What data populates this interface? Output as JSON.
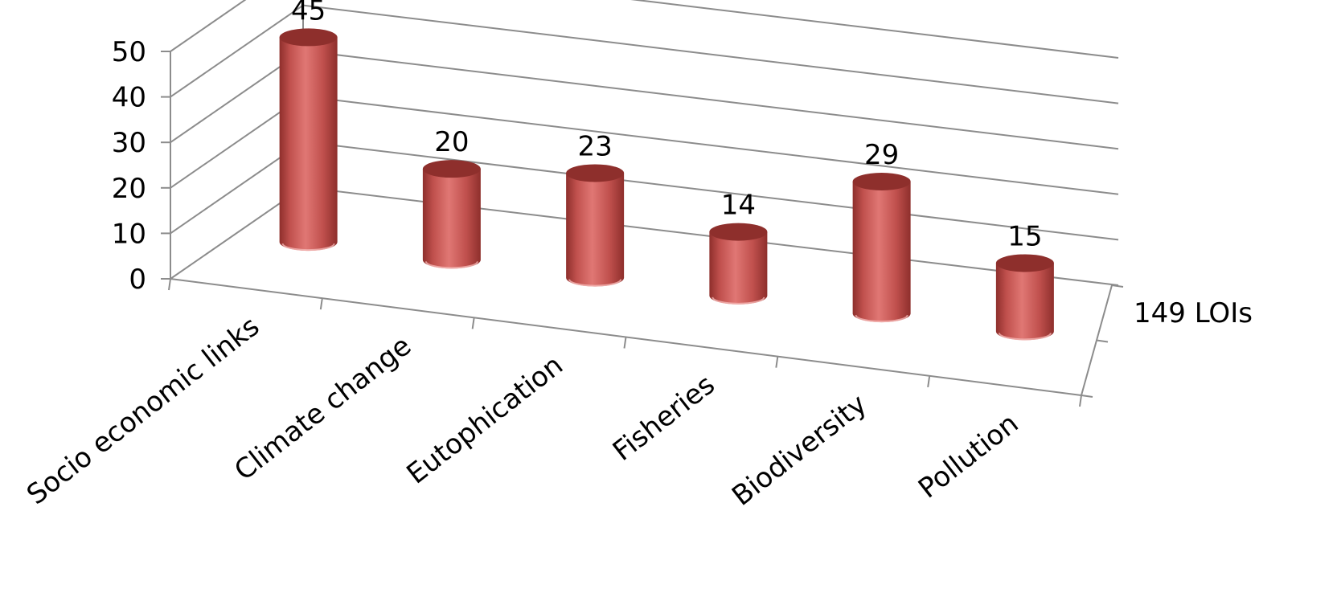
{
  "chart_data": {
    "type": "bar",
    "style": "3d-cylinder",
    "title": "",
    "xlabel": "",
    "ylabel": "",
    "ylim": [
      0,
      50
    ],
    "yticks": [
      "0",
      "10",
      "20",
      "30",
      "40",
      "50"
    ],
    "grid": true,
    "categories": [
      "Socio economic links",
      "Climate change",
      "Eutophication",
      "Fisheries",
      "Biodiversity",
      "Pollution"
    ],
    "series": [
      {
        "name": "149 LOIs",
        "values": [
          45,
          20,
          23,
          14,
          29,
          15
        ]
      }
    ],
    "data_labels": [
      "45",
      "20",
      "23",
      "14",
      "29",
      "15"
    ],
    "colors": {
      "bar": "#C0504D",
      "bar_light": "#E07774",
      "bar_dark": "#8E2F2C",
      "grid": "#8C8C8C"
    }
  }
}
